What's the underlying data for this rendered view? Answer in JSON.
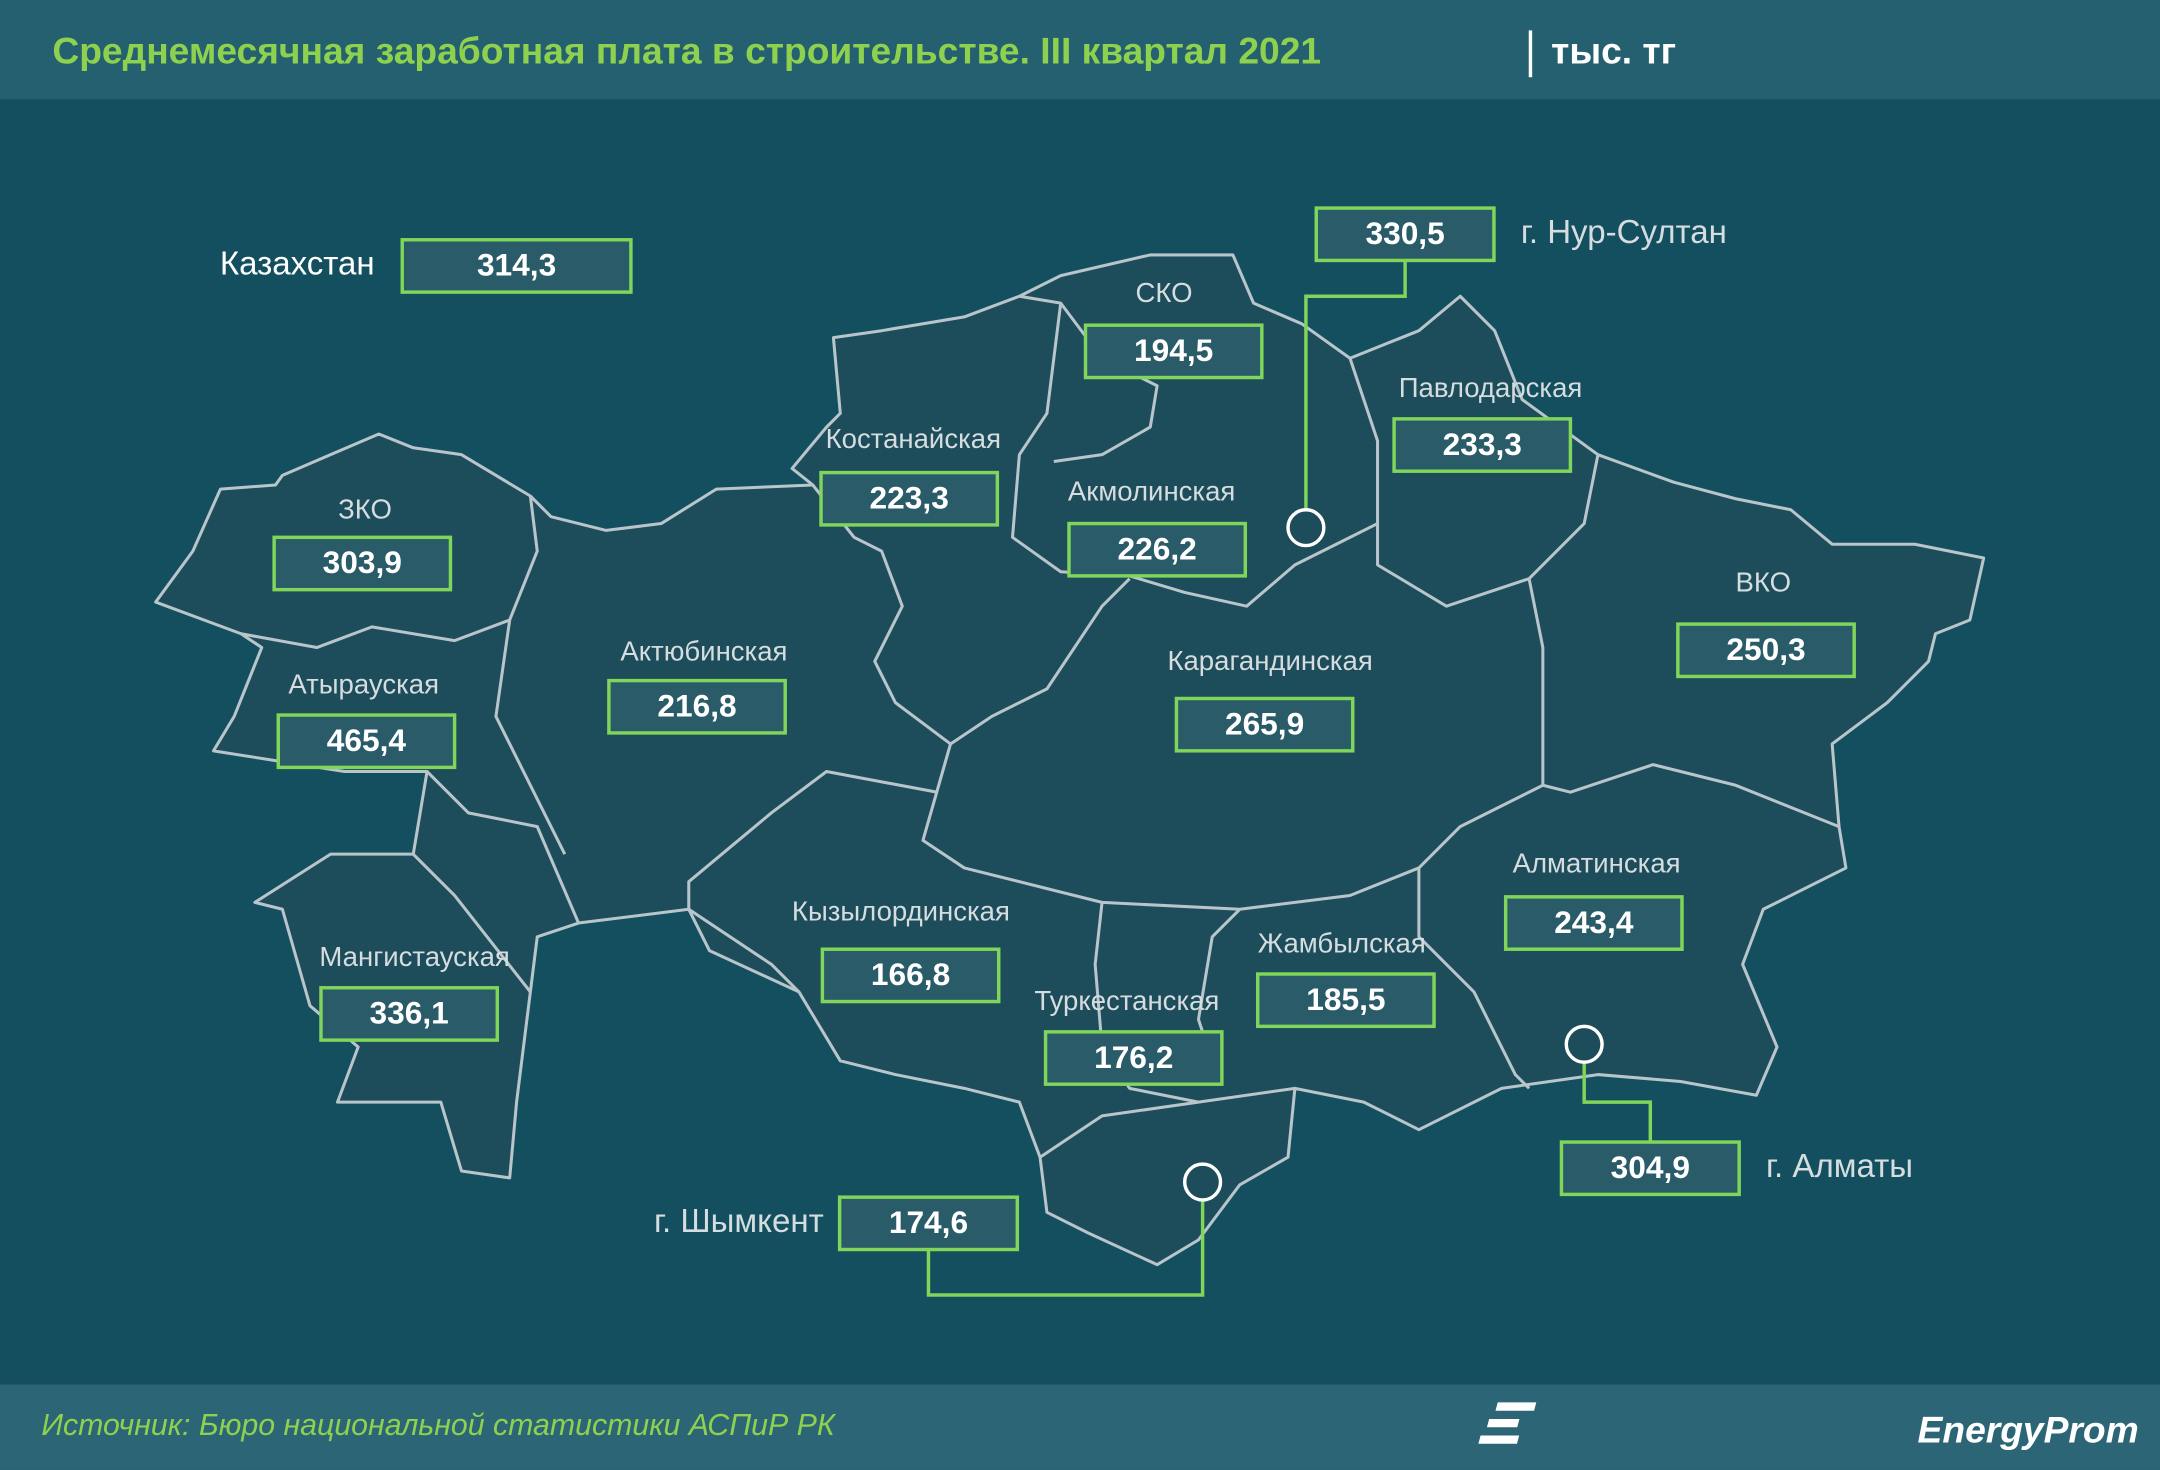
{
  "header": {
    "title": "Среднемесячная заработная плата в строительстве. III квартал 2021",
    "unit": "тыс. тг"
  },
  "summary": {
    "name": "Казахстан",
    "value": "314,3"
  },
  "regions": [
    {
      "name": "СКО",
      "value": "194,5"
    },
    {
      "name": "Павлодарская",
      "value": "233,3"
    },
    {
      "name": "Костанайская",
      "value": "223,3"
    },
    {
      "name": "Акмолинская",
      "value": "226,2"
    },
    {
      "name": "ЗКО",
      "value": "303,9"
    },
    {
      "name": "ВКО",
      "value": "250,3"
    },
    {
      "name": "Актюбинская",
      "value": "216,8"
    },
    {
      "name": "Карагандинская",
      "value": "265,9"
    },
    {
      "name": "Атырауская",
      "value": "465,4"
    },
    {
      "name": "Алматинская",
      "value": "243,4"
    },
    {
      "name": "Кызылординская",
      "value": "166,8"
    },
    {
      "name": "Мангистауская",
      "value": "336,1"
    },
    {
      "name": "Жамбылская",
      "value": "185,5"
    },
    {
      "name": "Туркестанская",
      "value": "176,2"
    }
  ],
  "cities": [
    {
      "name": "г. Нур-Султан",
      "value": "330,5"
    },
    {
      "name": "г. Алматы",
      "value": "304,9"
    },
    {
      "name": "г. Шымкент",
      "value": "174,6"
    }
  ],
  "footer": {
    "source": "Источник: Бюро национальной статистики АСПиР РК",
    "logo": "EnergyProm"
  }
}
